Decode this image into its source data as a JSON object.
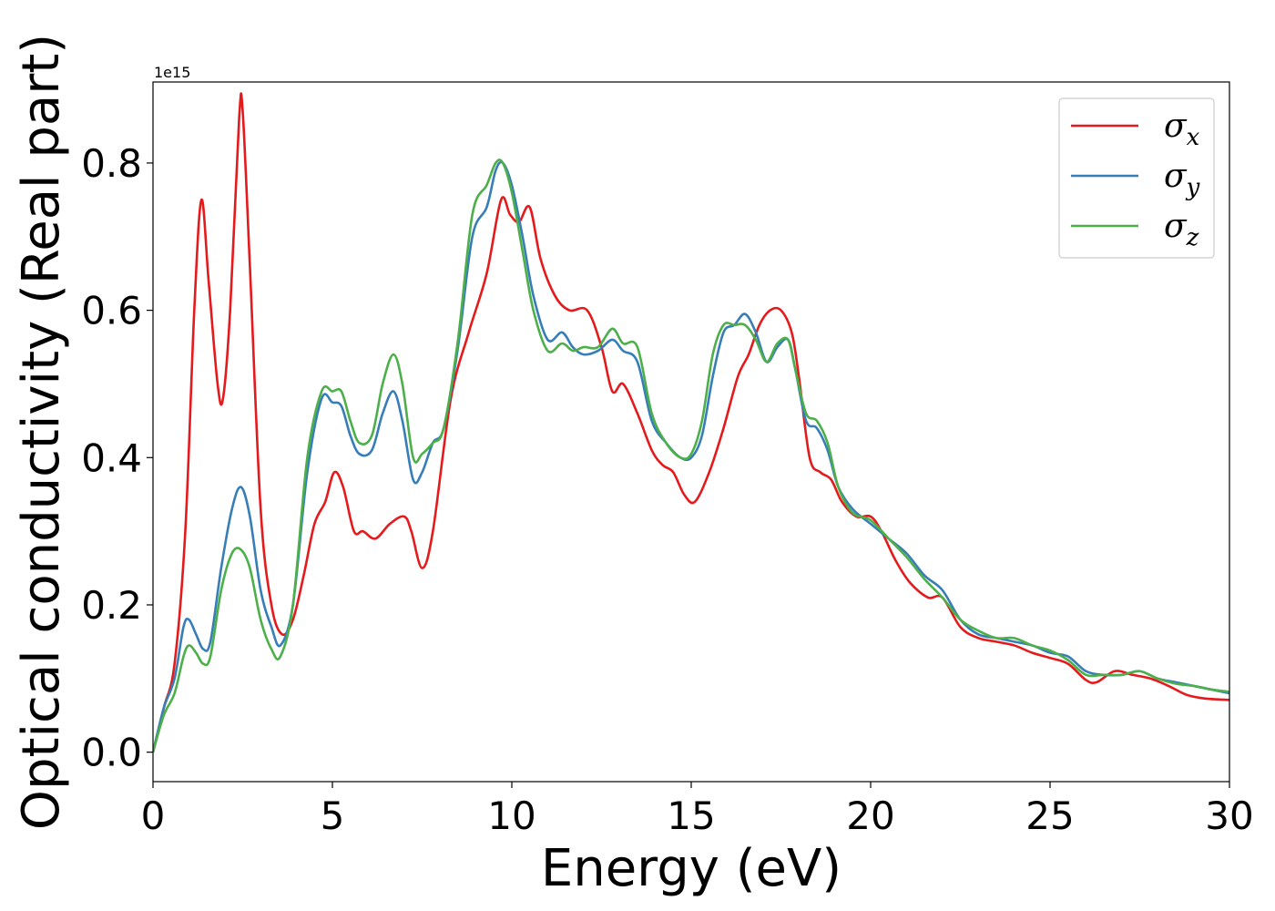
{
  "chart_data": {
    "type": "line",
    "xlabel": "Energy (eV)",
    "ylabel": "Optical conductivity (Real part)",
    "y_offset_label": "1e15",
    "xlim": [
      0,
      30
    ],
    "ylim": [
      -0.04,
      0.91
    ],
    "x_ticks": [
      0,
      5,
      10,
      15,
      20,
      25,
      30
    ],
    "y_ticks": [
      0.0,
      0.2,
      0.4,
      0.6,
      0.8
    ],
    "x_tick_labels": [
      "0",
      "5",
      "10",
      "15",
      "20",
      "25",
      "30"
    ],
    "y_tick_labels": [
      "0.0",
      "0.2",
      "0.4",
      "0.6",
      "0.8"
    ],
    "grid": false,
    "legend_position": "top-right",
    "legend": [
      {
        "symbol": "σ",
        "sub": "x"
      },
      {
        "symbol": "σ",
        "sub": "y"
      },
      {
        "symbol": "σ",
        "sub": "z"
      }
    ],
    "series": [
      {
        "color": "#e41a1c",
        "points": [
          [
            0,
            0
          ],
          [
            0.3,
            0.06
          ],
          [
            0.6,
            0.12
          ],
          [
            0.9,
            0.3
          ],
          [
            1.15,
            0.6
          ],
          [
            1.35,
            0.75
          ],
          [
            1.55,
            0.64
          ],
          [
            1.8,
            0.5
          ],
          [
            1.95,
            0.48
          ],
          [
            2.15,
            0.6
          ],
          [
            2.4,
            0.86
          ],
          [
            2.5,
            0.87
          ],
          [
            2.7,
            0.66
          ],
          [
            3.0,
            0.33
          ],
          [
            3.3,
            0.2
          ],
          [
            3.6,
            0.16
          ],
          [
            3.9,
            0.18
          ],
          [
            4.2,
            0.24
          ],
          [
            4.5,
            0.31
          ],
          [
            4.8,
            0.34
          ],
          [
            5.05,
            0.38
          ],
          [
            5.3,
            0.36
          ],
          [
            5.6,
            0.3
          ],
          [
            5.85,
            0.3
          ],
          [
            6.2,
            0.29
          ],
          [
            6.6,
            0.31
          ],
          [
            7.0,
            0.32
          ],
          [
            7.2,
            0.3
          ],
          [
            7.5,
            0.25
          ],
          [
            7.8,
            0.3
          ],
          [
            8.3,
            0.48
          ],
          [
            8.8,
            0.57
          ],
          [
            9.3,
            0.65
          ],
          [
            9.7,
            0.75
          ],
          [
            9.95,
            0.73
          ],
          [
            10.2,
            0.72
          ],
          [
            10.5,
            0.74
          ],
          [
            10.8,
            0.67
          ],
          [
            11.2,
            0.62
          ],
          [
            11.6,
            0.6
          ],
          [
            12.1,
            0.6
          ],
          [
            12.5,
            0.55
          ],
          [
            12.8,
            0.49
          ],
          [
            13.1,
            0.5
          ],
          [
            13.5,
            0.46
          ],
          [
            13.9,
            0.41
          ],
          [
            14.2,
            0.39
          ],
          [
            14.5,
            0.38
          ],
          [
            14.8,
            0.35
          ],
          [
            15.1,
            0.34
          ],
          [
            15.5,
            0.38
          ],
          [
            15.9,
            0.44
          ],
          [
            16.3,
            0.51
          ],
          [
            16.6,
            0.54
          ],
          [
            16.9,
            0.58
          ],
          [
            17.2,
            0.6
          ],
          [
            17.5,
            0.6
          ],
          [
            17.8,
            0.57
          ],
          [
            18.0,
            0.51
          ],
          [
            18.3,
            0.4
          ],
          [
            18.6,
            0.38
          ],
          [
            18.9,
            0.37
          ],
          [
            19.2,
            0.34
          ],
          [
            19.6,
            0.32
          ],
          [
            20.0,
            0.32
          ],
          [
            20.3,
            0.3
          ],
          [
            20.7,
            0.26
          ],
          [
            21.1,
            0.23
          ],
          [
            21.6,
            0.21
          ],
          [
            22.0,
            0.21
          ],
          [
            22.5,
            0.17
          ],
          [
            23.0,
            0.155
          ],
          [
            23.5,
            0.15
          ],
          [
            24.0,
            0.145
          ],
          [
            24.5,
            0.135
          ],
          [
            25.0,
            0.128
          ],
          [
            25.5,
            0.12
          ],
          [
            26.0,
            0.098
          ],
          [
            26.3,
            0.095
          ],
          [
            26.8,
            0.11
          ],
          [
            27.3,
            0.105
          ],
          [
            27.8,
            0.1
          ],
          [
            28.3,
            0.09
          ],
          [
            28.8,
            0.078
          ],
          [
            29.3,
            0.073
          ],
          [
            30,
            0.071
          ]
        ]
      },
      {
        "color": "#377eb8",
        "points": [
          [
            0,
            0
          ],
          [
            0.3,
            0.06
          ],
          [
            0.6,
            0.1
          ],
          [
            0.85,
            0.17
          ],
          [
            1.0,
            0.18
          ],
          [
            1.2,
            0.16
          ],
          [
            1.4,
            0.14
          ],
          [
            1.6,
            0.15
          ],
          [
            1.9,
            0.25
          ],
          [
            2.2,
            0.33
          ],
          [
            2.45,
            0.36
          ],
          [
            2.7,
            0.32
          ],
          [
            3.0,
            0.22
          ],
          [
            3.3,
            0.17
          ],
          [
            3.55,
            0.145
          ],
          [
            3.9,
            0.2
          ],
          [
            4.3,
            0.38
          ],
          [
            4.7,
            0.48
          ],
          [
            5.0,
            0.475
          ],
          [
            5.25,
            0.47
          ],
          [
            5.5,
            0.43
          ],
          [
            5.75,
            0.405
          ],
          [
            6.1,
            0.41
          ],
          [
            6.4,
            0.46
          ],
          [
            6.7,
            0.49
          ],
          [
            6.95,
            0.45
          ],
          [
            7.25,
            0.37
          ],
          [
            7.5,
            0.38
          ],
          [
            7.8,
            0.42
          ],
          [
            8.1,
            0.44
          ],
          [
            8.5,
            0.55
          ],
          [
            8.9,
            0.7
          ],
          [
            9.3,
            0.74
          ],
          [
            9.55,
            0.79
          ],
          [
            9.75,
            0.8
          ],
          [
            10.0,
            0.77
          ],
          [
            10.3,
            0.7
          ],
          [
            10.6,
            0.62
          ],
          [
            11.0,
            0.56
          ],
          [
            11.4,
            0.57
          ],
          [
            11.7,
            0.55
          ],
          [
            12.0,
            0.54
          ],
          [
            12.4,
            0.545
          ],
          [
            12.8,
            0.56
          ],
          [
            13.1,
            0.545
          ],
          [
            13.5,
            0.53
          ],
          [
            13.9,
            0.45
          ],
          [
            14.3,
            0.42
          ],
          [
            14.7,
            0.4
          ],
          [
            15.0,
            0.4
          ],
          [
            15.3,
            0.43
          ],
          [
            15.6,
            0.51
          ],
          [
            15.9,
            0.57
          ],
          [
            16.2,
            0.58
          ],
          [
            16.5,
            0.595
          ],
          [
            16.8,
            0.57
          ],
          [
            17.1,
            0.53
          ],
          [
            17.4,
            0.55
          ],
          [
            17.7,
            0.56
          ],
          [
            17.9,
            0.52
          ],
          [
            18.2,
            0.45
          ],
          [
            18.5,
            0.44
          ],
          [
            18.8,
            0.41
          ],
          [
            19.1,
            0.36
          ],
          [
            19.5,
            0.33
          ],
          [
            20.0,
            0.31
          ],
          [
            20.5,
            0.29
          ],
          [
            21.0,
            0.27
          ],
          [
            21.5,
            0.24
          ],
          [
            22.0,
            0.22
          ],
          [
            22.5,
            0.18
          ],
          [
            23.0,
            0.16
          ],
          [
            23.5,
            0.155
          ],
          [
            24.0,
            0.15
          ],
          [
            24.5,
            0.145
          ],
          [
            25.0,
            0.135
          ],
          [
            25.5,
            0.13
          ],
          [
            26.0,
            0.11
          ],
          [
            26.5,
            0.105
          ],
          [
            27.0,
            0.105
          ],
          [
            27.5,
            0.11
          ],
          [
            28.0,
            0.1
          ],
          [
            28.5,
            0.095
          ],
          [
            29.0,
            0.09
          ],
          [
            29.5,
            0.085
          ],
          [
            30,
            0.08
          ]
        ]
      },
      {
        "color": "#4daf4a",
        "points": [
          [
            0,
            0
          ],
          [
            0.3,
            0.05
          ],
          [
            0.6,
            0.08
          ],
          [
            0.85,
            0.13
          ],
          [
            1.0,
            0.145
          ],
          [
            1.2,
            0.135
          ],
          [
            1.4,
            0.12
          ],
          [
            1.6,
            0.13
          ],
          [
            1.9,
            0.22
          ],
          [
            2.2,
            0.27
          ],
          [
            2.45,
            0.275
          ],
          [
            2.7,
            0.25
          ],
          [
            3.0,
            0.18
          ],
          [
            3.3,
            0.14
          ],
          [
            3.55,
            0.13
          ],
          [
            3.9,
            0.2
          ],
          [
            4.3,
            0.4
          ],
          [
            4.7,
            0.49
          ],
          [
            5.0,
            0.49
          ],
          [
            5.25,
            0.49
          ],
          [
            5.5,
            0.45
          ],
          [
            5.75,
            0.42
          ],
          [
            6.1,
            0.43
          ],
          [
            6.4,
            0.5
          ],
          [
            6.7,
            0.54
          ],
          [
            6.95,
            0.5
          ],
          [
            7.25,
            0.4
          ],
          [
            7.5,
            0.405
          ],
          [
            7.8,
            0.42
          ],
          [
            8.1,
            0.44
          ],
          [
            8.5,
            0.56
          ],
          [
            8.9,
            0.73
          ],
          [
            9.3,
            0.77
          ],
          [
            9.55,
            0.8
          ],
          [
            9.75,
            0.8
          ],
          [
            10.0,
            0.76
          ],
          [
            10.3,
            0.68
          ],
          [
            10.6,
            0.6
          ],
          [
            11.0,
            0.545
          ],
          [
            11.4,
            0.555
          ],
          [
            11.7,
            0.545
          ],
          [
            12.0,
            0.55
          ],
          [
            12.4,
            0.55
          ],
          [
            12.8,
            0.575
          ],
          [
            13.1,
            0.555
          ],
          [
            13.5,
            0.55
          ],
          [
            13.9,
            0.46
          ],
          [
            14.3,
            0.42
          ],
          [
            14.7,
            0.4
          ],
          [
            15.0,
            0.405
          ],
          [
            15.3,
            0.45
          ],
          [
            15.6,
            0.54
          ],
          [
            15.9,
            0.58
          ],
          [
            16.2,
            0.58
          ],
          [
            16.5,
            0.58
          ],
          [
            16.8,
            0.56
          ],
          [
            17.1,
            0.53
          ],
          [
            17.4,
            0.555
          ],
          [
            17.7,
            0.56
          ],
          [
            17.9,
            0.52
          ],
          [
            18.2,
            0.46
          ],
          [
            18.5,
            0.45
          ],
          [
            18.8,
            0.42
          ],
          [
            19.1,
            0.36
          ],
          [
            19.5,
            0.325
          ],
          [
            20.0,
            0.315
          ],
          [
            20.5,
            0.29
          ],
          [
            21.0,
            0.265
          ],
          [
            21.5,
            0.235
          ],
          [
            22.0,
            0.21
          ],
          [
            22.5,
            0.18
          ],
          [
            23.0,
            0.165
          ],
          [
            23.5,
            0.155
          ],
          [
            24.0,
            0.155
          ],
          [
            24.5,
            0.145
          ],
          [
            25.0,
            0.138
          ],
          [
            25.5,
            0.125
          ],
          [
            26.0,
            0.105
          ],
          [
            26.5,
            0.105
          ],
          [
            27.0,
            0.105
          ],
          [
            27.5,
            0.11
          ],
          [
            28.0,
            0.1
          ],
          [
            28.5,
            0.093
          ],
          [
            29.0,
            0.09
          ],
          [
            29.5,
            0.085
          ],
          [
            30,
            0.082
          ]
        ]
      }
    ]
  }
}
